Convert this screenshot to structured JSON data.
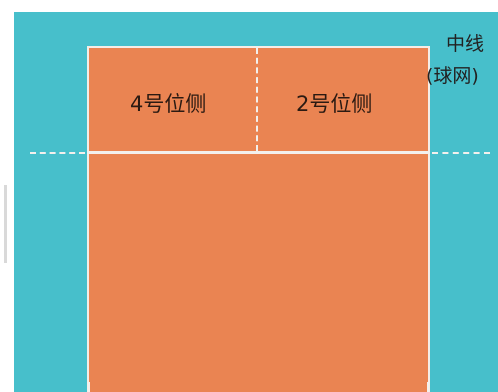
{
  "diagram": {
    "zones": {
      "left_label": "4号位侧",
      "right_label": "2号位侧"
    },
    "midline": {
      "title": "中线",
      "subtitle": "(球网)"
    },
    "colors": {
      "field": "#47bfcb",
      "court": "#ea8452",
      "lines": "#f3f0ed",
      "text": "#2b1a12"
    }
  }
}
